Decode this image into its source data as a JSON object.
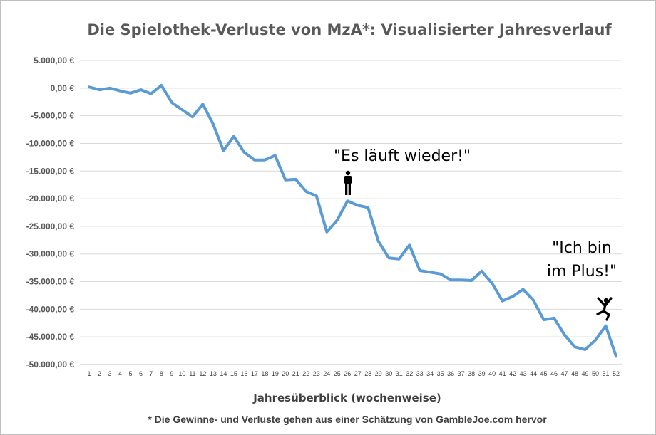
{
  "chart_data": {
    "type": "line",
    "title": "Die Spielothek-Verluste von MzA*: Visualisierter Jahresverlauf",
    "xlabel": "Jahresüberblick (wochenweise)",
    "ylabel": "",
    "footnote": "* Die Gewinne- und Verluste gehen aus einer Schätzung von GambleJoe.com hervor",
    "x": [
      1,
      2,
      3,
      4,
      5,
      6,
      7,
      8,
      9,
      10,
      11,
      12,
      13,
      14,
      15,
      16,
      17,
      18,
      19,
      20,
      21,
      22,
      23,
      24,
      25,
      26,
      27,
      28,
      29,
      30,
      31,
      32,
      33,
      34,
      35,
      36,
      37,
      38,
      39,
      40,
      41,
      42,
      43,
      44,
      45,
      46,
      47,
      48,
      49,
      50,
      51,
      52
    ],
    "series": [
      {
        "color": "#5b9bd5",
        "values": [
          200,
          -300,
          0,
          -500,
          -900,
          -300,
          -1000,
          500,
          -2600,
          -3900,
          -5200,
          -2900,
          -6500,
          -11300,
          -8700,
          -11600,
          -13000,
          -13000,
          -12200,
          -16600,
          -16500,
          -18700,
          -19500,
          -26000,
          -23900,
          -20400,
          -21200,
          -21600,
          -27700,
          -30700,
          -30900,
          -28400,
          -33000,
          -33300,
          -33600,
          -34700,
          -34700,
          -34800,
          -33100,
          -35300,
          -38500,
          -37700,
          -36400,
          -38400,
          -41900,
          -41600,
          -44600,
          -46800,
          -47300,
          -45600,
          -43000,
          -48500
        ]
      }
    ],
    "ylim": [
      -50000,
      5000
    ],
    "y_ticks": [
      5000,
      0,
      -5000,
      -10000,
      -15000,
      -20000,
      -25000,
      -30000,
      -35000,
      -40000,
      -45000,
      -50000
    ],
    "y_tick_labels": [
      "5.000,00 €",
      "0,00 €",
      "-5.000,00 €",
      "-10.000,00 €",
      "-15.000,00 €",
      "-20.000,00 €",
      "-25.000,00 €",
      "-30.000,00 €",
      "-35.000,00 €",
      "-40.000,00 €",
      "-45.000,00 €",
      "-50.000,00 €"
    ],
    "grid": true,
    "legend": "none",
    "annotations": [
      {
        "lines": [
          "\"Es läuft wieder!\""
        ],
        "x": 26,
        "icon": "standing-person-icon"
      },
      {
        "lines": [
          "\"Ich bin",
          "im Plus!\""
        ],
        "x": 51,
        "icon": "jumping-person-icon"
      }
    ]
  }
}
